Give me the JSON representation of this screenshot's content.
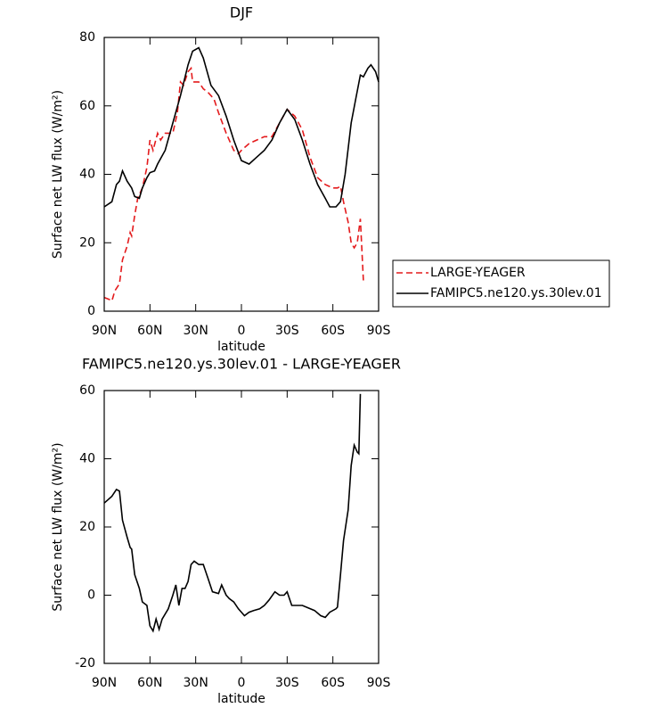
{
  "chart_data": [
    {
      "type": "line",
      "title": "DJF",
      "xlabel": "latitude",
      "ylabel": "Surface net LW flux (W/m²)",
      "xlim": [
        90,
        -90
      ],
      "xticks": [
        {
          "value": 90,
          "label": "90N"
        },
        {
          "value": 60,
          "label": "60N"
        },
        {
          "value": 30,
          "label": "30N"
        },
        0,
        {
          "value": -30,
          "label": "30S"
        },
        {
          "value": -60,
          "label": "60S"
        },
        {
          "value": -90,
          "label": "90S"
        }
      ],
      "ylim": [
        0,
        80
      ],
      "yticks": [
        0,
        20,
        40,
        60,
        80
      ],
      "legend": "right",
      "series": [
        {
          "name": "LARGE-YEAGER",
          "color": "#e41a1c",
          "dash": true,
          "x": [
            90,
            87,
            85,
            83,
            80,
            78,
            75,
            73,
            72,
            70,
            68,
            65,
            62,
            60,
            58,
            55,
            53,
            50,
            45,
            42,
            40,
            38,
            35,
            33,
            32,
            28,
            25,
            22,
            18,
            15,
            10,
            5,
            2,
            0,
            -5,
            -10,
            -15,
            -20,
            -25,
            -30,
            -35,
            -40,
            -45,
            -50,
            -55,
            -60,
            -63,
            -65,
            -67,
            -70,
            -72,
            -74,
            -76,
            -78,
            -80
          ],
          "values": [
            4,
            3.5,
            3,
            6,
            8,
            15,
            19,
            23,
            22,
            28,
            33,
            36,
            42,
            50,
            47,
            52,
            50,
            52,
            52,
            58,
            67,
            66,
            70,
            71,
            67,
            67,
            65,
            64,
            62,
            58,
            52,
            47,
            46,
            47,
            49,
            50,
            51,
            51,
            55,
            59,
            57,
            53,
            45,
            39,
            37,
            36,
            36,
            36.5,
            32,
            26,
            20,
            18.5,
            20,
            27,
            9
          ]
        },
        {
          "name": "FAMIPC5.ne120.ys.30lev.01",
          "color": "#000000",
          "dash": false,
          "x": [
            90,
            85,
            82,
            80,
            78,
            75,
            72,
            70,
            67,
            65,
            62,
            60,
            57,
            55,
            50,
            45,
            40,
            35,
            32,
            28,
            25,
            20,
            15,
            10,
            5,
            0,
            -5,
            -10,
            -15,
            -20,
            -25,
            -30,
            -35,
            -40,
            -45,
            -50,
            -55,
            -58,
            -62,
            -65,
            -68,
            -72,
            -75,
            -78,
            -80,
            -83,
            -85,
            -88,
            -90
          ],
          "values": [
            30.5,
            32,
            37,
            38,
            41,
            38,
            36,
            33.5,
            33,
            36,
            39,
            40.5,
            41,
            43,
            47,
            55,
            63,
            72,
            76,
            77,
            74,
            66,
            63,
            57,
            50,
            44,
            43,
            45,
            47,
            50,
            55,
            59,
            56,
            50,
            43,
            37,
            33,
            30.5,
            30.5,
            32,
            40,
            55,
            62,
            69,
            68.5,
            71,
            72,
            70,
            67
          ]
        }
      ]
    },
    {
      "type": "line",
      "title": "FAMIPC5.ne120.ys.30lev.01 - LARGE-YEAGER",
      "xlabel": "latitude",
      "ylabel": "Surface net LW flux (W/m²)",
      "xlim": [
        90,
        -90
      ],
      "xticks": [
        {
          "value": 90,
          "label": "90N"
        },
        {
          "value": 60,
          "label": "60N"
        },
        {
          "value": 30,
          "label": "30N"
        },
        0,
        {
          "value": -30,
          "label": "30S"
        },
        {
          "value": -60,
          "label": "60S"
        },
        {
          "value": -90,
          "label": "90S"
        }
      ],
      "ylim": [
        -20,
        60
      ],
      "yticks": [
        -20,
        0,
        20,
        40,
        60
      ],
      "series": [
        {
          "color": "#000000",
          "dash": false,
          "x": [
            90,
            85,
            82,
            80,
            78,
            75,
            73,
            72,
            70,
            67,
            65,
            62,
            60,
            58,
            56,
            54,
            52,
            48,
            45,
            43,
            41,
            39,
            37,
            35,
            33,
            31,
            28,
            25,
            22,
            19,
            15,
            13,
            10,
            8,
            5,
            2,
            0,
            -2,
            -5,
            -8,
            -12,
            -15,
            -18,
            -22,
            -25,
            -28,
            -30,
            -33,
            -40,
            -48,
            -52,
            -55,
            -58,
            -62,
            -63,
            -65,
            -67,
            -70,
            -72,
            -74,
            -76,
            -77,
            -78
          ],
          "values": [
            27,
            29,
            31,
            30.5,
            22,
            17,
            14,
            13.5,
            6,
            2,
            -2,
            -3,
            -9,
            -10.5,
            -7,
            -10,
            -7,
            -4,
            0,
            3,
            -3,
            2,
            2,
            4,
            9,
            10,
            9,
            9,
            5,
            1,
            0.5,
            3,
            0,
            -1,
            -2,
            -4,
            -5,
            -6,
            -5,
            -4.5,
            -4,
            -3,
            -1.5,
            1,
            0,
            0,
            1,
            -3,
            -3,
            -4.5,
            -6,
            -6.5,
            -5,
            -4,
            -3.5,
            6,
            16,
            25,
            38,
            44,
            42,
            41.5,
            59
          ]
        }
      ]
    }
  ]
}
